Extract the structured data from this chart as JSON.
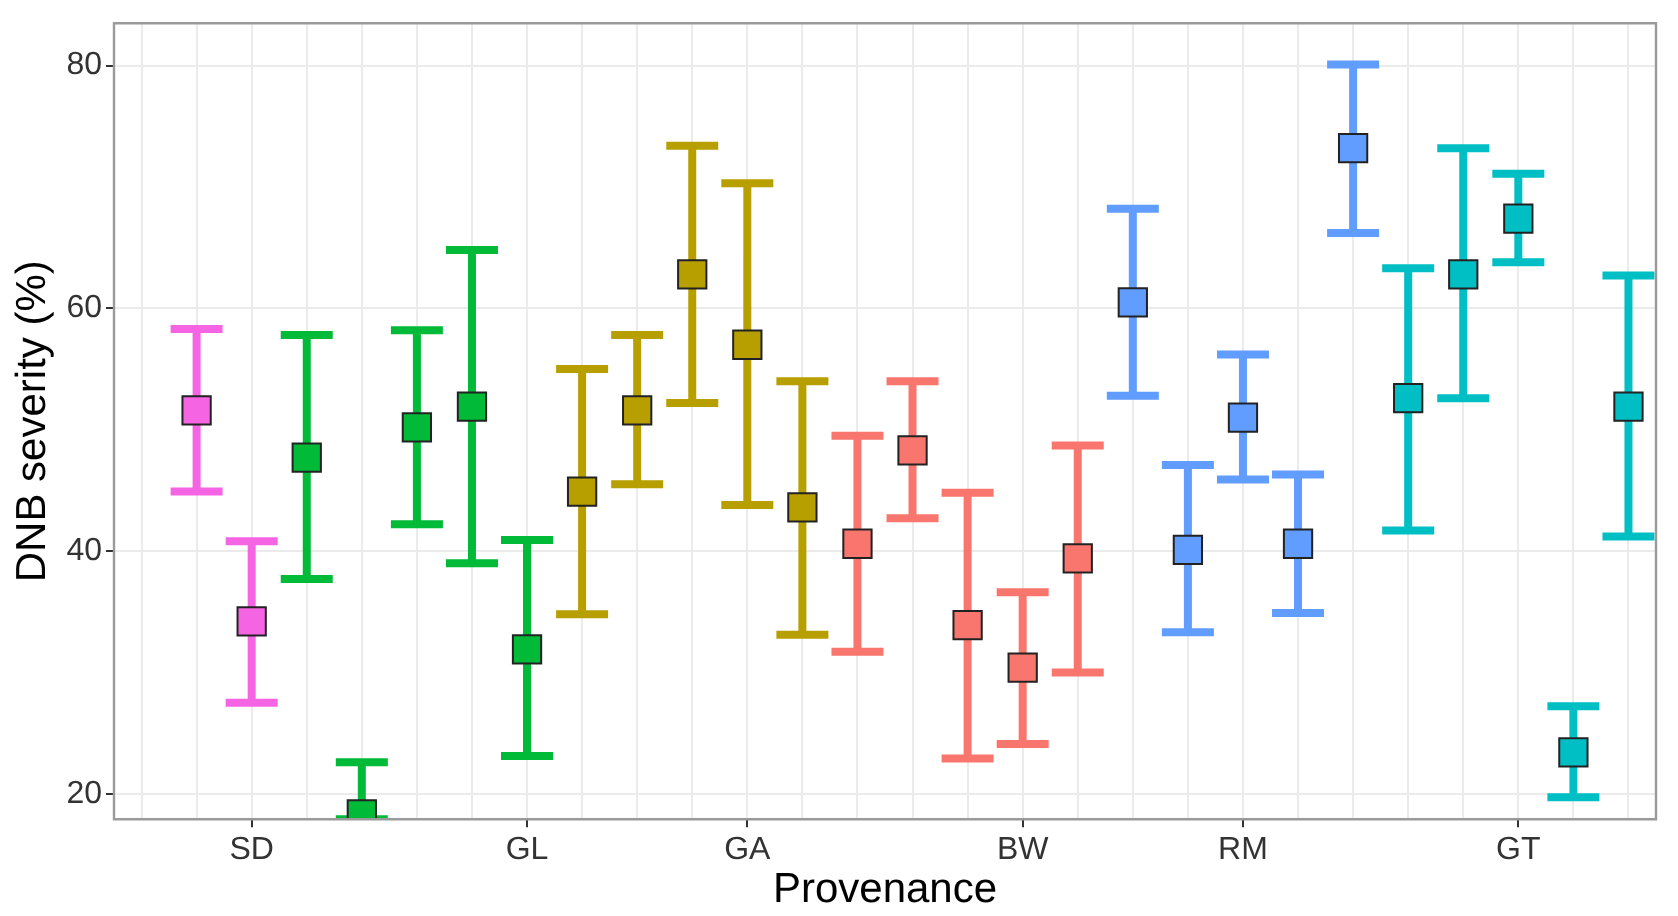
{
  "chart_data": {
    "type": "scatter",
    "xlabel": "Provenance",
    "ylabel": "DNB severity (%)",
    "marker": "square",
    "grid": true,
    "categories": [
      null,
      null,
      "SD",
      null,
      null,
      null,
      null,
      "GL",
      null,
      null,
      null,
      "GA",
      null,
      null,
      null,
      null,
      "BW",
      null,
      null,
      null,
      "RM",
      null,
      null,
      null,
      null,
      "GT",
      null,
      null
    ],
    "ylim": [
      17.9,
      83.5
    ],
    "yticks": [
      20,
      40,
      60,
      80
    ],
    "series": [
      {
        "color": "#f564e3",
        "values": [
          null,
          51.6,
          34.2,
          null,
          null,
          null,
          null,
          null,
          null,
          null,
          null,
          null,
          null,
          null,
          null,
          null,
          null,
          null,
          null,
          null,
          null,
          null,
          null,
          null,
          null,
          null,
          null,
          null
        ],
        "errors": [
          null,
          [
            44.9,
            58.3
          ],
          [
            27.5,
            40.8
          ],
          null,
          null,
          null,
          null,
          null,
          null,
          null,
          null,
          null,
          null,
          null,
          null,
          null,
          null,
          null,
          null,
          null,
          null,
          null,
          null,
          null,
          null,
          null,
          null,
          null
        ]
      },
      {
        "color": "#00ba38",
        "values": [
          null,
          null,
          null,
          47.7,
          18.3,
          50.2,
          51.9,
          31.9,
          null,
          null,
          null,
          null,
          null,
          null,
          null,
          null,
          null,
          null,
          null,
          null,
          null,
          null,
          null,
          null,
          null,
          null,
          null,
          null
        ],
        "errors": [
          null,
          null,
          null,
          [
            37.7,
            57.8
          ],
          [
            17.9,
            22.6
          ],
          [
            42.2,
            58.2
          ],
          [
            39.0,
            64.8
          ],
          [
            23.1,
            40.9
          ],
          null,
          null,
          null,
          null,
          null,
          null,
          null,
          null,
          null,
          null,
          null,
          null,
          null,
          null,
          null,
          null,
          null,
          null,
          null,
          null
        ]
      },
      {
        "color": "#b79f00",
        "values": [
          null,
          null,
          null,
          null,
          null,
          null,
          null,
          null,
          44.9,
          51.6,
          62.8,
          57.0,
          43.6,
          null,
          null,
          null,
          null,
          null,
          null,
          null,
          null,
          null,
          null,
          null,
          null,
          null,
          null,
          null
        ],
        "errors": [
          null,
          null,
          null,
          null,
          null,
          null,
          null,
          null,
          [
            34.8,
            55.0
          ],
          [
            45.5,
            57.8
          ],
          [
            52.2,
            73.4
          ],
          [
            43.8,
            70.3
          ],
          [
            33.1,
            54.0
          ],
          null,
          null,
          null,
          null,
          null,
          null,
          null,
          null,
          null,
          null,
          null,
          null,
          null,
          null,
          null
        ]
      },
      {
        "color": "#f8766d",
        "values": [
          null,
          null,
          null,
          null,
          null,
          null,
          null,
          null,
          null,
          null,
          null,
          null,
          null,
          40.6,
          48.3,
          33.9,
          30.4,
          39.4,
          null,
          null,
          null,
          null,
          null,
          null,
          null,
          null,
          null,
          null
        ],
        "errors": [
          null,
          null,
          null,
          null,
          null,
          null,
          null,
          null,
          null,
          null,
          null,
          null,
          null,
          [
            31.7,
            49.5
          ],
          [
            42.7,
            54.0
          ],
          [
            22.9,
            44.8
          ],
          [
            24.1,
            36.6
          ],
          [
            30.0,
            48.7
          ],
          null,
          null,
          null,
          null,
          null,
          null,
          null,
          null,
          null,
          null
        ]
      },
      {
        "color": "#619cff",
        "values": [
          null,
          null,
          null,
          null,
          null,
          null,
          null,
          null,
          null,
          null,
          null,
          null,
          null,
          null,
          null,
          null,
          null,
          null,
          60.5,
          40.1,
          51.0,
          40.6,
          73.2,
          null,
          null,
          null,
          null,
          null
        ],
        "errors": [
          null,
          null,
          null,
          null,
          null,
          null,
          null,
          null,
          null,
          null,
          null,
          null,
          null,
          null,
          null,
          null,
          null,
          null,
          [
            52.8,
            68.2
          ],
          [
            33.3,
            47.1
          ],
          [
            45.9,
            56.2
          ],
          [
            34.9,
            46.3
          ],
          [
            66.2,
            80.1
          ],
          null,
          null,
          null,
          null,
          null
        ]
      },
      {
        "color": "#00bfc4",
        "values": [
          null,
          null,
          null,
          null,
          null,
          null,
          null,
          null,
          null,
          null,
          null,
          null,
          null,
          null,
          null,
          null,
          null,
          null,
          null,
          null,
          null,
          null,
          null,
          52.6,
          62.8,
          67.4,
          23.4,
          51.9
        ],
        "errors": [
          null,
          null,
          null,
          null,
          null,
          null,
          null,
          null,
          null,
          null,
          null,
          null,
          null,
          null,
          null,
          null,
          null,
          null,
          null,
          null,
          null,
          null,
          null,
          [
            41.7,
            63.3
          ],
          [
            52.6,
            73.2
          ],
          [
            63.8,
            71.1
          ],
          [
            19.7,
            27.2
          ],
          [
            41.2,
            62.7
          ]
        ]
      }
    ]
  }
}
